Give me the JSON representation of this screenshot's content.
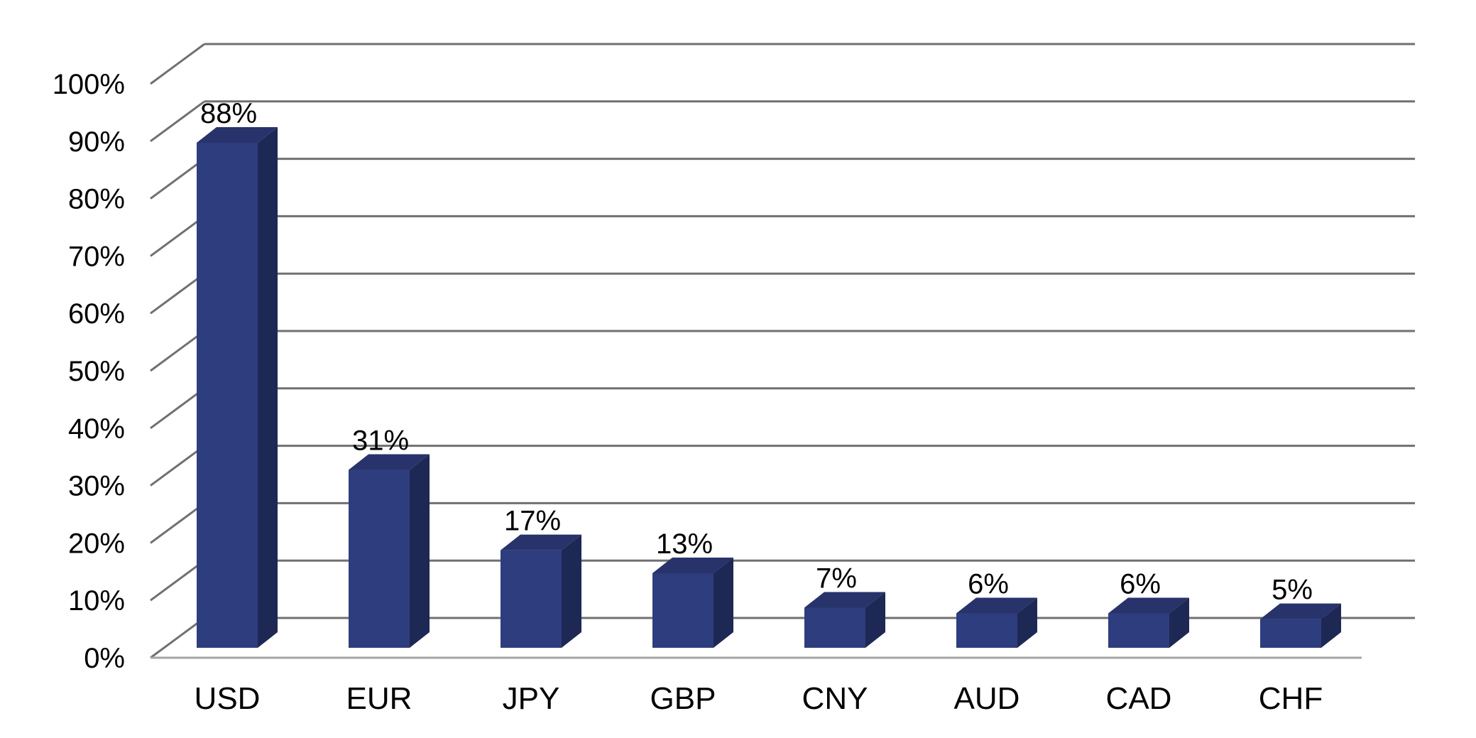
{
  "chart_data": {
    "type": "bar",
    "categories": [
      "USD",
      "EUR",
      "JPY",
      "GBP",
      "CNY",
      "AUD",
      "CAD",
      "CHF"
    ],
    "values": [
      88,
      31,
      17,
      13,
      7,
      6,
      6,
      5
    ],
    "data_labels": [
      "88%",
      "31%",
      "17%",
      "13%",
      "7%",
      "6%",
      "6%",
      "5%"
    ],
    "ylim": [
      0,
      100
    ],
    "y_ticks": [
      0,
      10,
      20,
      30,
      40,
      50,
      60,
      70,
      80,
      90,
      100
    ],
    "y_tick_labels": [
      "0%",
      "10%",
      "20%",
      "30%",
      "40%",
      "50%",
      "60%",
      "70%",
      "80%",
      "90%",
      "100%"
    ],
    "grid": true,
    "style": "3d-column",
    "colors": {
      "bar_front": "#2e3d7e",
      "bar_side": "#1e2854",
      "bar_top": "#27336a",
      "grid": "#707070",
      "floor": "#a6a6a6"
    }
  }
}
